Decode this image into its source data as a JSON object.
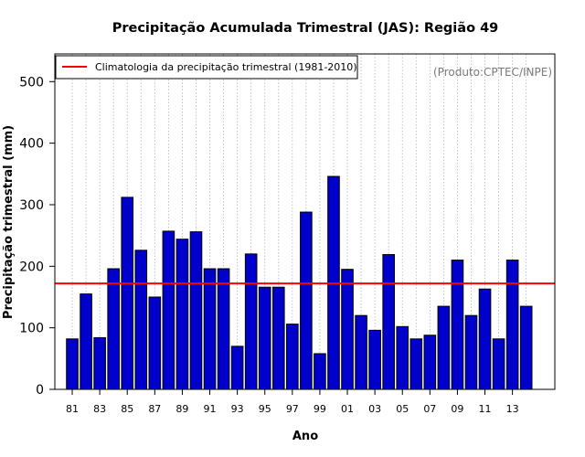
{
  "chart_data": {
    "type": "bar",
    "title": "Precipitação Acumulada Trimestral (JAS): Região 49",
    "xlabel": "Ano",
    "ylabel": "Precipitação trimestral (mm)",
    "ylim": [
      0,
      545
    ],
    "yticks": [
      0,
      100,
      200,
      300,
      400,
      500
    ],
    "grid": "vertical dotted",
    "legend": {
      "position": "top-left",
      "label": "Climatologia da precipitação trimestral (1981-2010)",
      "color": "#ff0000"
    },
    "credit": "(Produto:CPTEC/INPE)",
    "bar_color": "#0000cd",
    "categories": [
      "81",
      "82",
      "83",
      "84",
      "85",
      "86",
      "87",
      "88",
      "89",
      "90",
      "91",
      "92",
      "93",
      "94",
      "95",
      "96",
      "97",
      "98",
      "99",
      "00",
      "01",
      "02",
      "03",
      "04",
      "05",
      "06",
      "07",
      "08",
      "09",
      "10",
      "11",
      "12",
      "13",
      "14"
    ],
    "tick_labels": [
      "81",
      "83",
      "85",
      "87",
      "89",
      "91",
      "93",
      "95",
      "97",
      "99",
      "01",
      "03",
      "05",
      "07",
      "09",
      "11",
      "13"
    ],
    "values": [
      82,
      155,
      84,
      196,
      312,
      226,
      150,
      257,
      244,
      256,
      196,
      196,
      70,
      220,
      166,
      166,
      106,
      288,
      58,
      346,
      195,
      120,
      96,
      219,
      102,
      82,
      88,
      135,
      210,
      120,
      163,
      82,
      210,
      135
    ],
    "climatology": 172
  }
}
